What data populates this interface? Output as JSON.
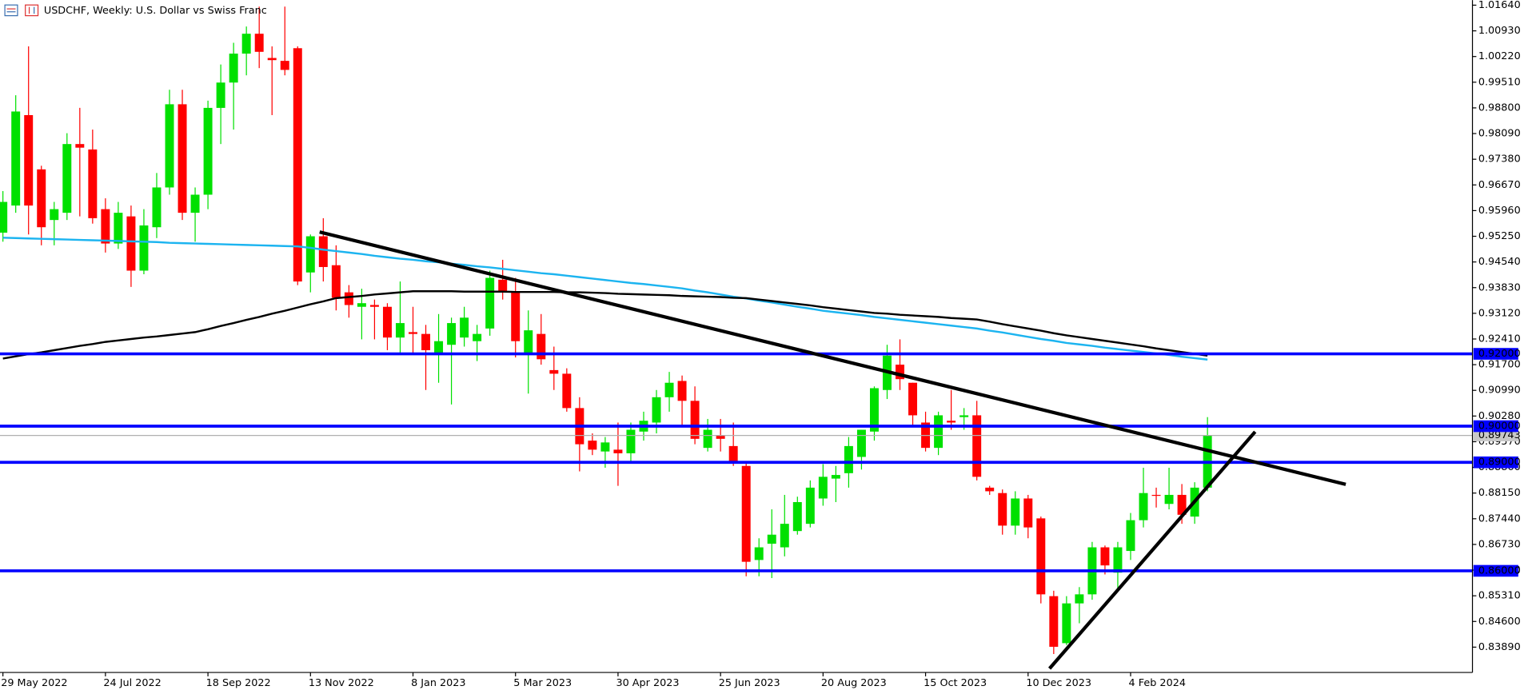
{
  "chart_data": {
    "type": "candlestick",
    "title": "USDCHF, Weekly:  U.S. Dollar vs Swiss Franc",
    "categories": [
      "29 May 2022",
      null,
      null,
      null,
      null,
      null,
      null,
      null,
      "24 Jul 2022",
      null,
      null,
      null,
      null,
      null,
      null,
      null,
      "18 Sep 2022",
      null,
      null,
      null,
      null,
      null,
      null,
      null,
      "13 Nov 2022",
      null,
      null,
      null,
      null,
      null,
      null,
      null,
      "8 Jan 2023",
      null,
      null,
      null,
      null,
      null,
      null,
      null,
      "5 Mar 2023",
      null,
      null,
      null,
      null,
      null,
      null,
      null,
      "30 Apr 2023",
      null,
      null,
      null,
      null,
      null,
      null,
      null,
      "25 Jun 2023",
      null,
      null,
      null,
      null,
      null,
      null,
      null,
      "20 Aug 2023",
      null,
      null,
      null,
      null,
      null,
      null,
      null,
      "15 Oct 2023",
      null,
      null,
      null,
      null,
      null,
      null,
      null,
      "10 Dec 2023",
      null,
      null,
      null,
      null,
      null,
      null,
      null,
      "4 Feb 2024",
      null,
      null,
      null,
      null,
      null,
      null
    ],
    "open": [
      0.9535,
      0.961,
      0.986,
      0.971,
      0.957,
      0.959,
      0.978,
      0.9765,
      0.96,
      0.9505,
      0.958,
      0.943,
      0.955,
      0.966,
      0.989,
      0.959,
      0.964,
      0.988,
      0.995,
      1.003,
      1.0085,
      1.0018,
      1.001,
      1.0045,
      0.9425,
      0.9525,
      0.9445,
      0.937,
      0.933,
      0.9335,
      0.933,
      0.9245,
      0.926,
      0.9255,
      0.92,
      0.9225,
      0.9245,
      0.9235,
      0.927,
      0.9405,
      0.937,
      0.92,
      0.9255,
      0.9155,
      0.9145,
      0.905,
      0.896,
      0.893,
      0.8935,
      0.8925,
      0.8985,
      0.901,
      0.908,
      0.9125,
      0.907,
      0.894,
      0.8975,
      0.8945,
      0.889,
      0.863,
      0.8675,
      0.8665,
      0.871,
      0.873,
      0.88,
      0.8855,
      0.887,
      0.8915,
      0.8985,
      0.91,
      0.917,
      0.912,
      0.901,
      0.894,
      0.9015,
      0.9025,
      0.903,
      0.883,
      0.8815,
      0.8725,
      0.88,
      0.8745,
      0.853,
      0.84,
      0.851,
      0.8535,
      0.8665,
      0.8595,
      0.8655,
      0.874,
      0.881,
      0.8785,
      0.881,
      0.875,
      0.883
    ],
    "high": [
      0.965,
      0.9915,
      1.005,
      0.972,
      0.962,
      0.981,
      0.988,
      0.982,
      0.963,
      0.962,
      0.961,
      0.96,
      0.97,
      0.993,
      0.993,
      0.966,
      0.99,
      1.0,
      1.006,
      1.0105,
      1.016,
      1.005,
      1.016,
      1.005,
      0.953,
      0.9575,
      0.95,
      0.939,
      0.938,
      0.935,
      0.934,
      0.94,
      0.933,
      0.928,
      0.931,
      0.93,
      0.933,
      0.928,
      0.943,
      0.946,
      0.941,
      0.932,
      0.931,
      0.922,
      0.916,
      0.908,
      0.898,
      0.897,
      0.901,
      0.901,
      0.904,
      0.91,
      0.915,
      0.914,
      0.911,
      0.902,
      0.902,
      0.901,
      0.89,
      0.869,
      0.877,
      0.881,
      0.8805,
      0.885,
      0.8895,
      0.889,
      0.897,
      0.899,
      0.911,
      0.9225,
      0.924,
      0.912,
      0.904,
      0.904,
      0.91,
      0.905,
      0.907,
      0.8835,
      0.8825,
      0.882,
      0.881,
      0.875,
      0.8545,
      0.853,
      0.8555,
      0.868,
      0.867,
      0.868,
      0.876,
      0.8885,
      0.883,
      0.8885,
      0.884,
      0.8845,
      0.9025
    ],
    "low": [
      0.951,
      0.959,
      0.953,
      0.95,
      0.95,
      0.957,
      0.958,
      0.956,
      0.948,
      0.949,
      0.9385,
      0.942,
      0.952,
      0.964,
      0.957,
      0.951,
      0.96,
      0.978,
      0.982,
      0.997,
      0.999,
      0.986,
      0.997,
      0.939,
      0.937,
      0.94,
      0.932,
      0.93,
      0.924,
      0.924,
      0.921,
      0.92,
      0.92,
      0.91,
      0.912,
      0.906,
      0.922,
      0.918,
      0.925,
      0.935,
      0.919,
      0.909,
      0.917,
      0.91,
      0.904,
      0.8875,
      0.892,
      0.8885,
      0.8835,
      0.89,
      0.896,
      0.898,
      0.904,
      0.9,
      0.895,
      0.893,
      0.893,
      0.889,
      0.8585,
      0.8585,
      0.858,
      0.864,
      0.87,
      0.872,
      0.878,
      0.879,
      0.883,
      0.888,
      0.896,
      0.9075,
      0.91,
      0.9,
      0.893,
      0.892,
      0.899,
      0.899,
      0.885,
      0.881,
      0.87,
      0.87,
      0.869,
      0.851,
      0.837,
      0.8395,
      0.8455,
      0.852,
      0.859,
      0.855,
      0.863,
      0.872,
      0.8775,
      0.877,
      0.873,
      0.873,
      0.882
    ],
    "close": [
      0.962,
      0.987,
      0.961,
      0.955,
      0.96,
      0.978,
      0.977,
      0.9575,
      0.9505,
      0.959,
      0.943,
      0.9555,
      0.966,
      0.989,
      0.959,
      0.964,
      0.988,
      0.995,
      1.003,
      1.0085,
      1.0035,
      1.0012,
      0.9985,
      0.94,
      0.9525,
      0.944,
      0.9355,
      0.9335,
      0.934,
      0.933,
      0.9245,
      0.9285,
      0.9255,
      0.921,
      0.9235,
      0.9285,
      0.93,
      0.9255,
      0.941,
      0.937,
      0.9235,
      0.9265,
      0.9185,
      0.9145,
      0.905,
      0.895,
      0.8935,
      0.8955,
      0.8925,
      0.899,
      0.9015,
      0.908,
      0.912,
      0.907,
      0.8965,
      0.899,
      0.8965,
      0.89,
      0.8625,
      0.8665,
      0.87,
      0.873,
      0.879,
      0.883,
      0.886,
      0.8865,
      0.8945,
      0.899,
      0.9105,
      0.9195,
      0.913,
      0.903,
      0.894,
      0.903,
      0.901,
      0.903,
      0.886,
      0.882,
      0.8725,
      0.88,
      0.872,
      0.8535,
      0.839,
      0.851,
      0.8535,
      0.8665,
      0.8615,
      0.8665,
      0.874,
      0.8815,
      0.8808,
      0.881,
      0.8755,
      0.883,
      0.8975
    ],
    "up_color": "#00e000",
    "down_color": "#ff0000",
    "lines": [
      {
        "color": "#1cb4f0",
        "values": [
          0.9521,
          0.952,
          0.9519,
          0.9518,
          0.9517,
          0.9516,
          0.9515,
          0.9514,
          0.9513,
          0.9512,
          0.9511,
          0.951,
          0.9509,
          0.9507,
          0.9506,
          0.9505,
          0.9504,
          0.9503,
          0.9502,
          0.9501,
          0.95,
          0.9499,
          0.9498,
          0.9497,
          0.9493,
          0.9488,
          0.9484,
          0.948,
          0.9476,
          0.9471,
          0.9467,
          0.9463,
          0.946,
          0.9456,
          0.9453,
          0.9449,
          0.9446,
          0.9442,
          0.9439,
          0.9435,
          0.9431,
          0.9427,
          0.9423,
          0.942,
          0.9416,
          0.9412,
          0.9408,
          0.9404,
          0.94,
          0.9396,
          0.9393,
          0.9389,
          0.9385,
          0.9381,
          0.9375,
          0.937,
          0.9364,
          0.9358,
          0.9353,
          0.9347,
          0.9342,
          0.9336,
          0.933,
          0.9325,
          0.9319,
          0.9315,
          0.9311,
          0.9307,
          0.9302,
          0.9298,
          0.9294,
          0.929,
          0.9286,
          0.9282,
          0.9278,
          0.9274,
          0.927,
          0.9264,
          0.9259,
          0.9253,
          0.9247,
          0.9241,
          0.9236,
          0.923,
          0.9226,
          0.9222,
          0.9217,
          0.9213,
          0.9209,
          0.9205,
          0.9201,
          0.9197,
          0.9192,
          0.9188,
          0.9184
        ]
      },
      {
        "color": "#000000",
        "values": [
          0.9187,
          0.9193,
          0.9199,
          0.9204,
          0.921,
          0.9216,
          0.9222,
          0.9227,
          0.9233,
          0.9237,
          0.9241,
          0.9245,
          0.9248,
          0.9252,
          0.9256,
          0.926,
          0.9268,
          0.9277,
          0.9285,
          0.9294,
          0.9302,
          0.9311,
          0.9319,
          0.9328,
          0.9337,
          0.9345,
          0.9354,
          0.9357,
          0.936,
          0.9364,
          0.9367,
          0.937,
          0.9373,
          0.9373,
          0.9373,
          0.9373,
          0.9372,
          0.9372,
          0.9372,
          0.9372,
          0.9371,
          0.9371,
          0.9371,
          0.9371,
          0.937,
          0.937,
          0.9369,
          0.9368,
          0.9366,
          0.9365,
          0.9364,
          0.9363,
          0.9362,
          0.936,
          0.9359,
          0.9358,
          0.9357,
          0.9355,
          0.9354,
          0.935,
          0.9346,
          0.9342,
          0.9338,
          0.9334,
          0.9329,
          0.9325,
          0.9321,
          0.9317,
          0.9313,
          0.9311,
          0.9308,
          0.9306,
          0.9304,
          0.9302,
          0.9299,
          0.9297,
          0.9295,
          0.9289,
          0.9282,
          0.9276,
          0.927,
          0.9264,
          0.9257,
          0.9251,
          0.9246,
          0.9241,
          0.9236,
          0.9231,
          0.9226,
          0.9221,
          0.9215,
          0.921,
          0.9205,
          0.92,
          0.9195
        ]
      }
    ],
    "levels": [
      {
        "value": 0.92,
        "label": "0.92000"
      },
      {
        "value": 0.9,
        "label": "0.90000"
      },
      {
        "value": 0.89,
        "label": "0.89000"
      },
      {
        "value": 0.86,
        "label": "0.86000"
      }
    ],
    "level_color": "#0000ff",
    "current_price": {
      "value": 0.89743,
      "label": "0.89743"
    },
    "ylim": [
      0.8319,
      1.0178
    ],
    "yticks": [
      {
        "value": 1.0164,
        "label": "1.01640"
      },
      {
        "value": 1.0093,
        "label": "1.00930"
      },
      {
        "value": 1.0022,
        "label": "1.00220"
      },
      {
        "value": 0.9951,
        "label": "0.99510"
      },
      {
        "value": 0.988,
        "label": "0.98800"
      },
      {
        "value": 0.9809,
        "label": "0.98090"
      },
      {
        "value": 0.9738,
        "label": "0.97380"
      },
      {
        "value": 0.9667,
        "label": "0.96670"
      },
      {
        "value": 0.9596,
        "label": "0.95960"
      },
      {
        "value": 0.9525,
        "label": "0.95250"
      },
      {
        "value": 0.9454,
        "label": "0.94540"
      },
      {
        "value": 0.9383,
        "label": "0.93830"
      },
      {
        "value": 0.9312,
        "label": "0.93120"
      },
      {
        "value": 0.9241,
        "label": "0.92410"
      },
      {
        "value": 0.917,
        "label": "0.91700"
      },
      {
        "value": 0.9099,
        "label": "0.90990"
      },
      {
        "value": 0.9028,
        "label": "0.90280"
      },
      {
        "value": 0.8957,
        "label": "0.89570"
      },
      {
        "value": 0.8886,
        "label": "0.88860"
      },
      {
        "value": 0.8815,
        "label": "0.88150"
      },
      {
        "value": 0.8744,
        "label": "0.87440"
      },
      {
        "value": 0.8673,
        "label": "0.86730"
      },
      {
        "value": 0.8602,
        "label": "0.86020"
      },
      {
        "value": 0.8531,
        "label": "0.85310"
      },
      {
        "value": 0.846,
        "label": "0.84600"
      },
      {
        "value": 0.8389,
        "label": "0.83890"
      }
    ]
  }
}
